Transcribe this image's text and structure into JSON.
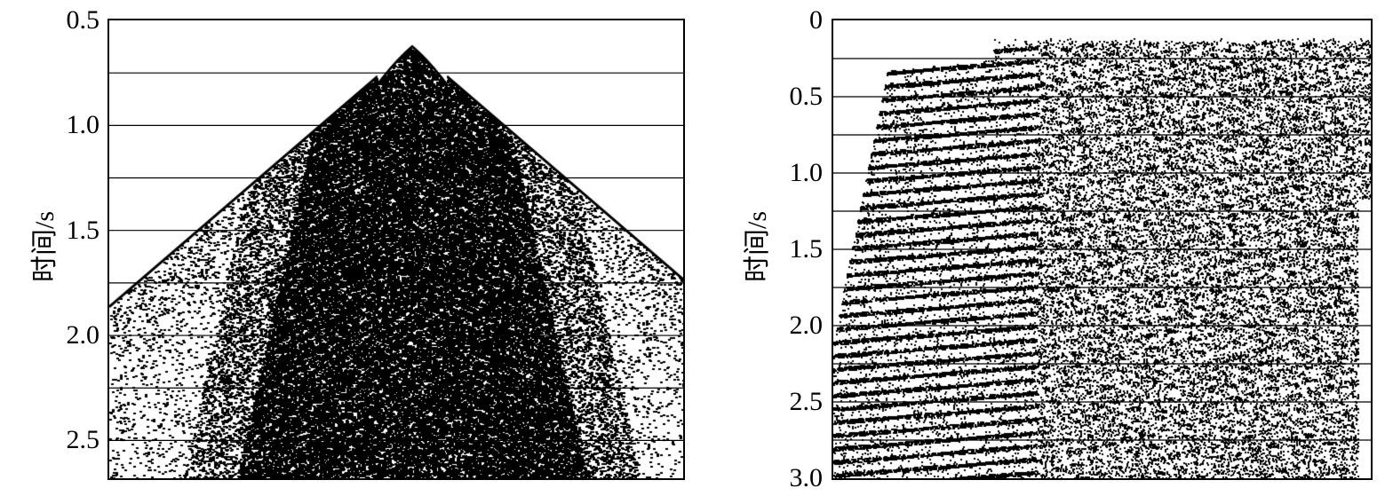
{
  "panels": [
    {
      "id": "left",
      "ylabel": "时间/s",
      "yticks": [
        "0.5",
        "1.0",
        "1.5",
        "2.0",
        "2.5"
      ],
      "ytick_values": [
        0.5,
        1.0,
        1.5,
        2.0,
        2.5
      ],
      "gridlines": [
        0.75,
        1.0,
        1.25,
        1.5,
        1.75,
        2.0,
        2.25,
        2.5
      ],
      "ylim": [
        0.5,
        2.68
      ]
    },
    {
      "id": "right",
      "ylabel": "时间/s",
      "yticks": [
        "0",
        "0.5",
        "1.0",
        "1.5",
        "2.0",
        "2.5",
        "3.0"
      ],
      "ytick_values": [
        0,
        0.5,
        1.0,
        1.5,
        2.0,
        2.5,
        3.0
      ],
      "gridlines": [
        0.25,
        0.5,
        0.75,
        1.0,
        1.25,
        1.5,
        1.75,
        2.0,
        2.25,
        2.5,
        2.75,
        3.0
      ],
      "ylim": [
        0,
        3.0
      ]
    }
  ]
}
